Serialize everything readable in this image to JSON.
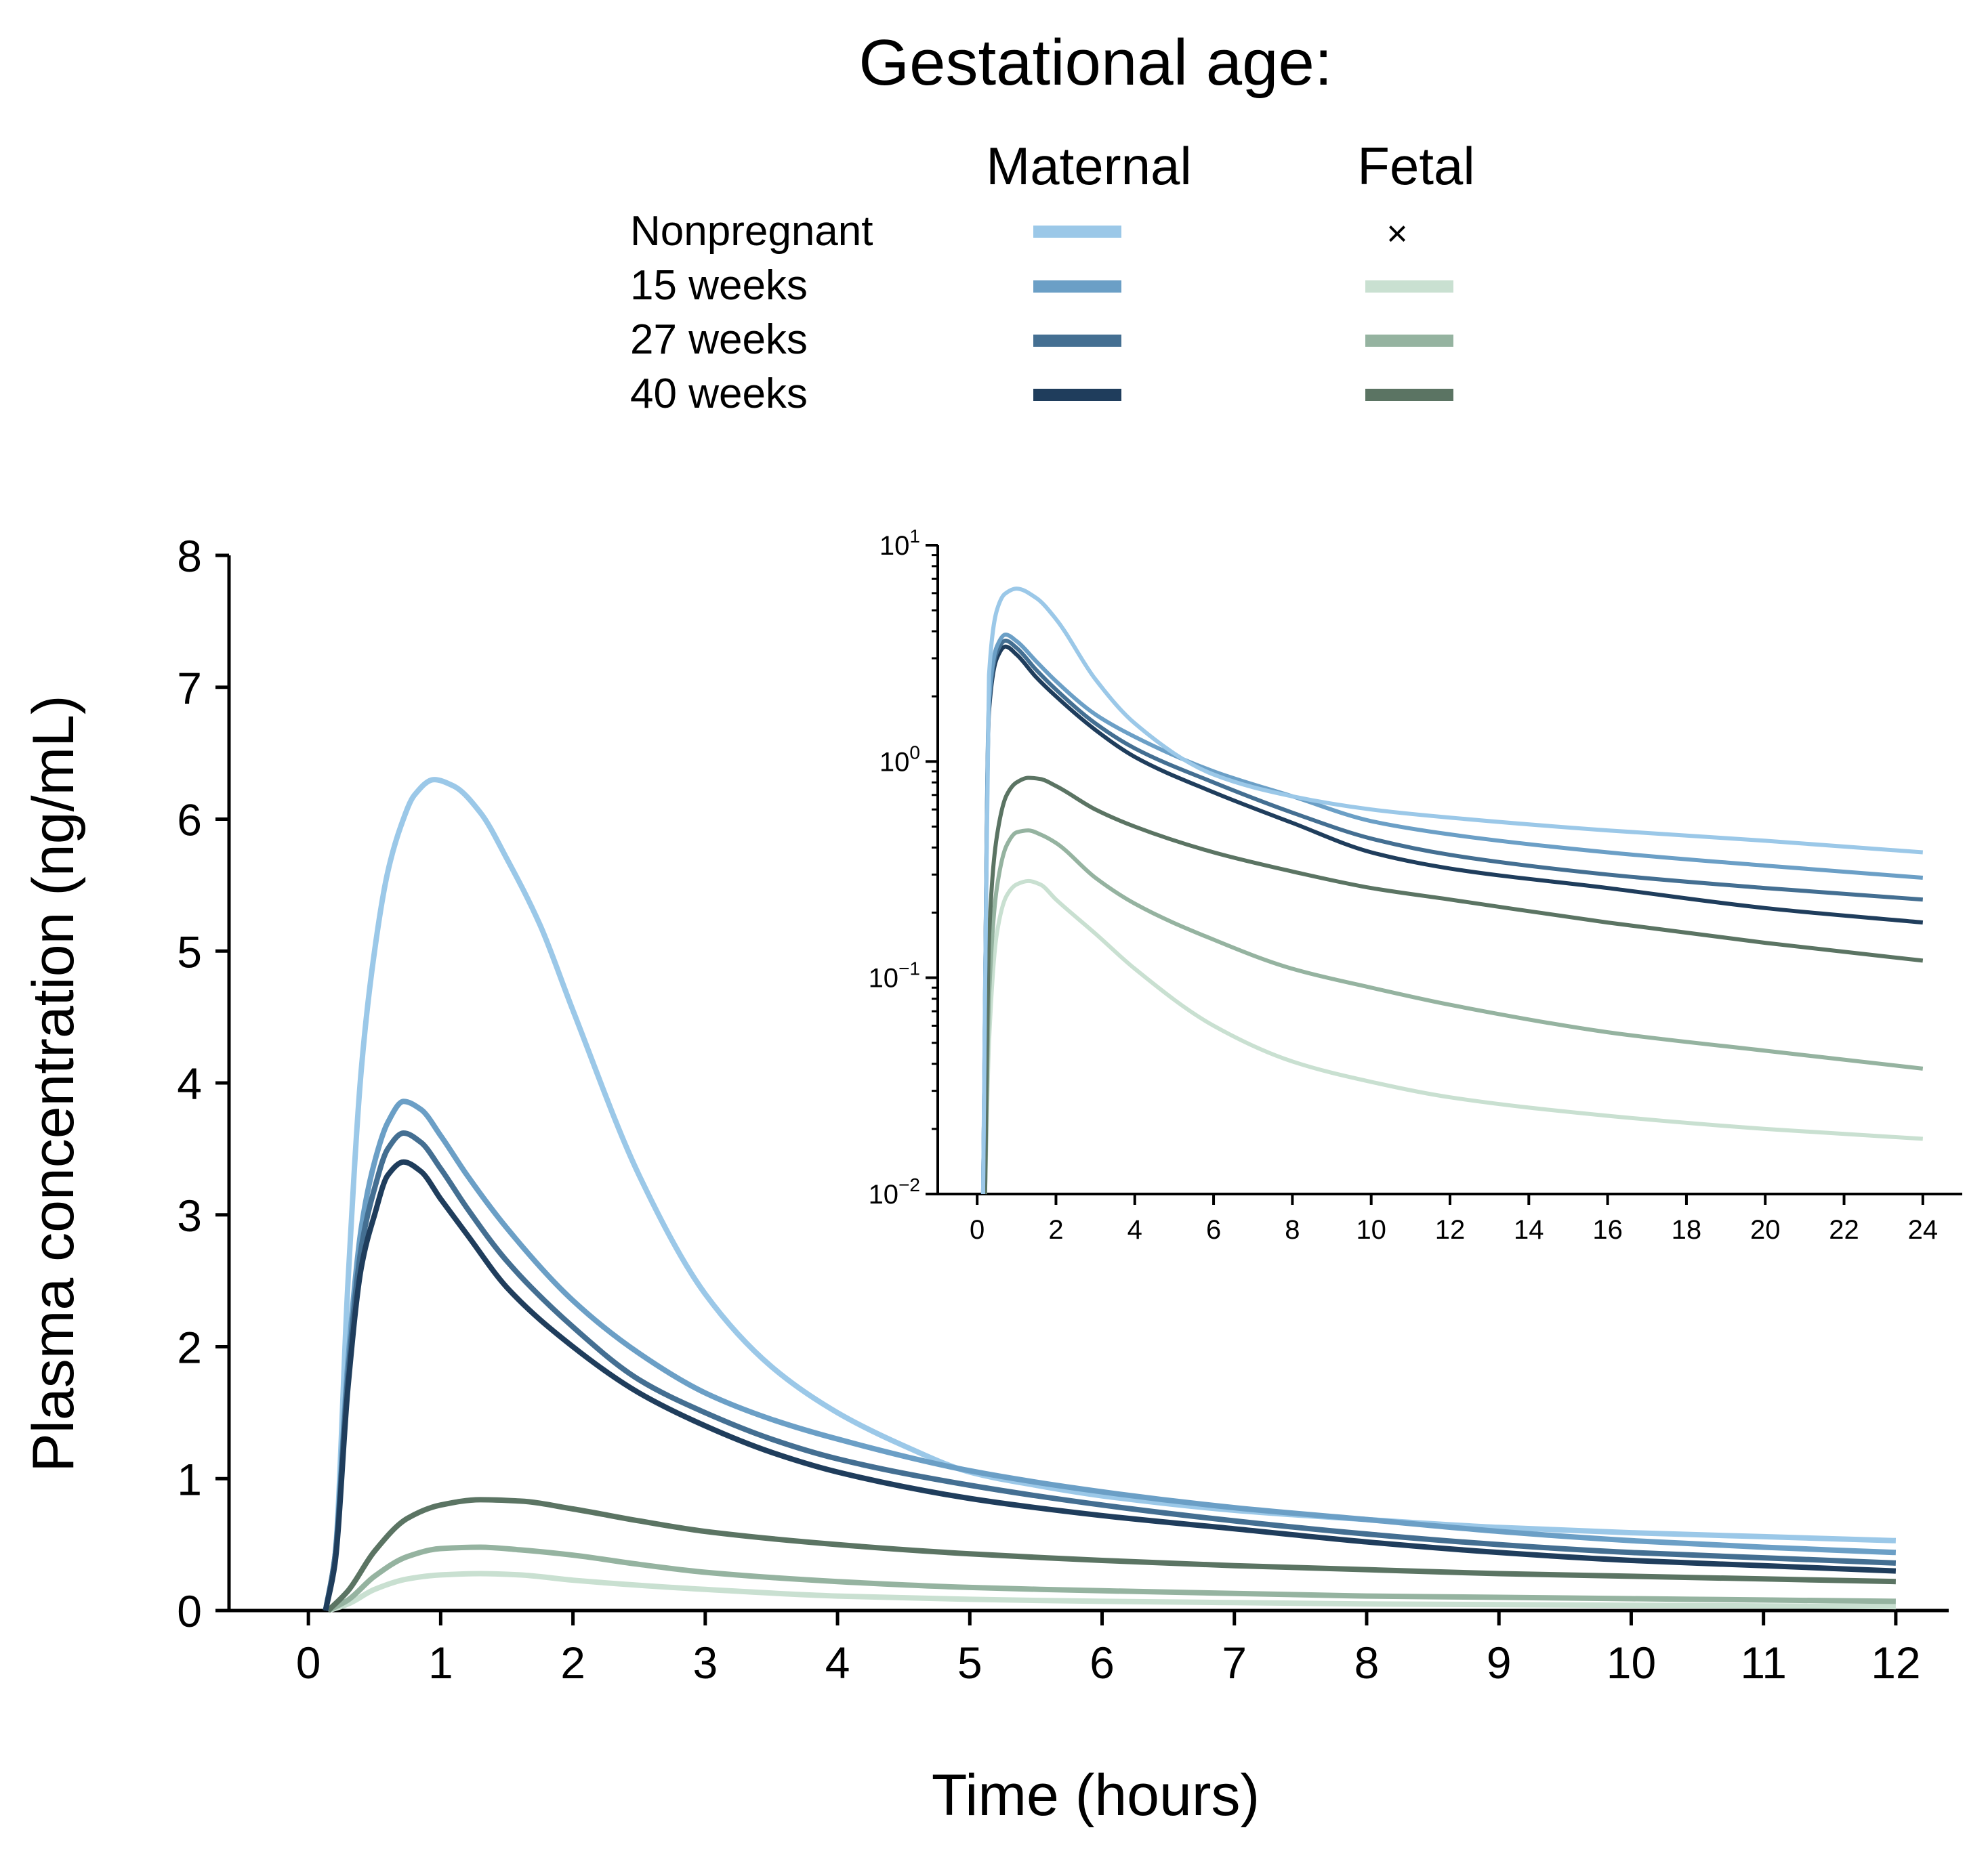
{
  "legend": {
    "title": "Gestational age:",
    "maternal_header": "Maternal",
    "fetal_header": "Fetal",
    "fetal_absent_symbol": "×",
    "rows": [
      {
        "label": "Nonpregnant",
        "maternal_color": "#9bc8e8",
        "fetal_color": null
      },
      {
        "label": "15 weeks",
        "maternal_color": "#6b9fc6",
        "fetal_color": "#c9e0d1"
      },
      {
        "label": "27 weeks",
        "maternal_color": "#446f92",
        "fetal_color": "#95b3a0"
      },
      {
        "label": "40 weeks",
        "maternal_color": "#1f3d5c",
        "fetal_color": "#5b7463"
      }
    ]
  },
  "chart_data": [
    {
      "type": "line",
      "title": "",
      "xlabel": "Time (hours)",
      "ylabel": "Plasma concentration (ng/mL)",
      "xlim": [
        -0.6,
        12.4
      ],
      "ylim": [
        0,
        8
      ],
      "xticks": [
        0,
        1,
        2,
        3,
        4,
        5,
        6,
        7,
        8,
        9,
        10,
        11,
        12
      ],
      "yticks": [
        0,
        1,
        2,
        3,
        4,
        5,
        6,
        7,
        8
      ],
      "series": [
        {
          "name": "Maternal Nonpregnant",
          "color": "#9bc8e8",
          "x": [
            0.13,
            0.2,
            0.3,
            0.4,
            0.5,
            0.6,
            0.7,
            0.8,
            0.95,
            1.1,
            1.3,
            1.5,
            1.75,
            2,
            2.5,
            3,
            3.5,
            4,
            4.5,
            5,
            5.5,
            6,
            7,
            8,
            9,
            10,
            11,
            12
          ],
          "y": [
            0,
            0.4,
            2.5,
            4.1,
            5.0,
            5.6,
            5.95,
            6.18,
            6.3,
            6.25,
            6.05,
            5.7,
            5.2,
            4.55,
            3.3,
            2.4,
            1.85,
            1.5,
            1.25,
            1.05,
            0.95,
            0.87,
            0.76,
            0.69,
            0.63,
            0.59,
            0.56,
            0.53
          ]
        },
        {
          "name": "Maternal 15 weeks",
          "color": "#6b9fc6",
          "x": [
            0.13,
            0.2,
            0.3,
            0.4,
            0.5,
            0.6,
            0.72,
            0.85,
            1,
            1.2,
            1.5,
            2,
            2.5,
            3,
            3.5,
            4,
            5,
            6,
            7,
            8,
            9,
            10,
            11,
            12
          ],
          "y": [
            0,
            0.4,
            1.9,
            2.9,
            3.4,
            3.7,
            3.86,
            3.8,
            3.6,
            3.3,
            2.9,
            2.35,
            1.95,
            1.65,
            1.45,
            1.3,
            1.06,
            0.9,
            0.78,
            0.69,
            0.6,
            0.53,
            0.48,
            0.44
          ]
        },
        {
          "name": "Maternal 27 weeks",
          "color": "#446f92",
          "x": [
            0.13,
            0.2,
            0.3,
            0.4,
            0.5,
            0.6,
            0.72,
            0.85,
            1,
            1.2,
            1.5,
            2,
            2.5,
            3,
            3.5,
            4,
            5,
            6,
            7,
            8,
            9,
            10,
            11,
            12
          ],
          "y": [
            0,
            0.4,
            1.8,
            2.75,
            3.2,
            3.5,
            3.62,
            3.55,
            3.35,
            3.05,
            2.65,
            2.15,
            1.75,
            1.5,
            1.3,
            1.15,
            0.95,
            0.8,
            0.68,
            0.58,
            0.5,
            0.44,
            0.4,
            0.36
          ]
        },
        {
          "name": "Maternal 40 weeks",
          "color": "#1f3d5c",
          "x": [
            0.13,
            0.2,
            0.3,
            0.4,
            0.5,
            0.6,
            0.72,
            0.85,
            1,
            1.2,
            1.5,
            2,
            2.5,
            3,
            3.5,
            4,
            5,
            6,
            7,
            8,
            9,
            10,
            11,
            12
          ],
          "y": [
            0,
            0.35,
            1.7,
            2.6,
            3.0,
            3.3,
            3.4,
            3.33,
            3.12,
            2.85,
            2.45,
            2.0,
            1.65,
            1.4,
            1.2,
            1.05,
            0.85,
            0.72,
            0.62,
            0.52,
            0.44,
            0.38,
            0.34,
            0.3
          ]
        },
        {
          "name": "Fetal 15 weeks",
          "color": "#c9e0d1",
          "x": [
            0.15,
            0.3,
            0.5,
            0.75,
            1,
            1.3,
            1.6,
            2,
            3,
            4,
            5,
            6,
            7,
            8,
            9,
            10,
            11,
            12
          ],
          "y": [
            0,
            0.05,
            0.16,
            0.24,
            0.27,
            0.28,
            0.27,
            0.23,
            0.16,
            0.11,
            0.085,
            0.07,
            0.06,
            0.05,
            0.045,
            0.04,
            0.035,
            0.03
          ]
        },
        {
          "name": "Fetal 27 weeks",
          "color": "#95b3a0",
          "x": [
            0.15,
            0.3,
            0.5,
            0.75,
            1,
            1.3,
            1.6,
            2,
            2.5,
            3,
            4,
            5,
            6,
            7,
            8,
            9,
            10,
            11,
            12
          ],
          "y": [
            0,
            0.08,
            0.26,
            0.41,
            0.47,
            0.48,
            0.46,
            0.42,
            0.35,
            0.29,
            0.22,
            0.175,
            0.15,
            0.13,
            0.11,
            0.1,
            0.09,
            0.08,
            0.07
          ]
        },
        {
          "name": "Fetal 40 weeks",
          "color": "#5b7463",
          "x": [
            0.15,
            0.3,
            0.5,
            0.75,
            1,
            1.3,
            1.6,
            2,
            2.5,
            3,
            4,
            5,
            6,
            7,
            8,
            9,
            10,
            11,
            12
          ],
          "y": [
            0,
            0.15,
            0.45,
            0.7,
            0.8,
            0.84,
            0.83,
            0.77,
            0.68,
            0.6,
            0.5,
            0.43,
            0.38,
            0.34,
            0.31,
            0.28,
            0.26,
            0.24,
            0.22
          ]
        }
      ]
    },
    {
      "type": "line",
      "title": "",
      "yscale": "log",
      "xlim": [
        -1,
        25
      ],
      "ylim": [
        0.01,
        10
      ],
      "xticks": [
        0,
        2,
        4,
        6,
        8,
        10,
        12,
        14,
        16,
        18,
        20,
        22,
        24
      ],
      "yticks": [
        0.01,
        0.1,
        1,
        10
      ],
      "ytick_labels": [
        {
          "base": "10",
          "exp": "−2"
        },
        {
          "base": "10",
          "exp": "−1"
        },
        {
          "base": "10",
          "exp": "0"
        },
        {
          "base": "10",
          "exp": "1"
        }
      ],
      "series": [
        {
          "name": "Maternal Nonpregnant",
          "color": "#9bc8e8",
          "x": [
            0.15,
            0.3,
            0.5,
            0.7,
            1,
            1.5,
            2,
            3,
            4,
            6,
            8,
            10,
            12,
            16,
            20,
            24
          ],
          "y": [
            0.01,
            2.5,
            5.0,
            5.95,
            6.3,
            5.7,
            4.55,
            2.4,
            1.5,
            0.87,
            0.69,
            0.6,
            0.55,
            0.48,
            0.43,
            0.38
          ]
        },
        {
          "name": "Maternal 15 weeks",
          "color": "#6b9fc6",
          "x": [
            0.15,
            0.3,
            0.5,
            0.72,
            1,
            1.5,
            2,
            3,
            4,
            6,
            8,
            10,
            12,
            16,
            20,
            24
          ],
          "y": [
            0.01,
            1.9,
            3.4,
            3.86,
            3.6,
            2.9,
            2.35,
            1.65,
            1.3,
            0.9,
            0.69,
            0.53,
            0.46,
            0.38,
            0.33,
            0.29
          ]
        },
        {
          "name": "Maternal 27 weeks",
          "color": "#446f92",
          "x": [
            0.15,
            0.3,
            0.5,
            0.72,
            1,
            1.5,
            2,
            3,
            4,
            6,
            8,
            10,
            12,
            16,
            20,
            24
          ],
          "y": [
            0.01,
            1.8,
            3.2,
            3.62,
            3.35,
            2.65,
            2.15,
            1.5,
            1.15,
            0.8,
            0.58,
            0.44,
            0.37,
            0.3,
            0.26,
            0.23
          ]
        },
        {
          "name": "Maternal 40 weeks",
          "color": "#1f3d5c",
          "x": [
            0.15,
            0.3,
            0.5,
            0.72,
            1,
            1.5,
            2,
            3,
            4,
            6,
            8,
            10,
            12,
            16,
            20,
            24
          ],
          "y": [
            0.01,
            1.7,
            3.0,
            3.4,
            3.12,
            2.45,
            2.0,
            1.4,
            1.05,
            0.72,
            0.52,
            0.38,
            0.32,
            0.26,
            0.21,
            0.18
          ]
        },
        {
          "name": "Fetal 15 weeks",
          "color": "#c9e0d1",
          "x": [
            0.2,
            0.3,
            0.5,
            0.75,
            1,
            1.3,
            1.6,
            2,
            3,
            4,
            6,
            8,
            10,
            12,
            16,
            20,
            24
          ],
          "y": [
            0.01,
            0.05,
            0.16,
            0.24,
            0.27,
            0.28,
            0.27,
            0.23,
            0.16,
            0.11,
            0.06,
            0.041,
            0.033,
            0.028,
            0.023,
            0.02,
            0.018
          ]
        },
        {
          "name": "Fetal 27 weeks",
          "color": "#95b3a0",
          "x": [
            0.2,
            0.3,
            0.5,
            0.75,
            1,
            1.3,
            1.6,
            2,
            3,
            4,
            6,
            8,
            10,
            12,
            16,
            20,
            24
          ],
          "y": [
            0.01,
            0.08,
            0.26,
            0.41,
            0.47,
            0.48,
            0.46,
            0.42,
            0.29,
            0.22,
            0.15,
            0.11,
            0.09,
            0.075,
            0.056,
            0.046,
            0.038
          ]
        },
        {
          "name": "Fetal 40 weeks",
          "color": "#5b7463",
          "x": [
            0.2,
            0.3,
            0.5,
            0.75,
            1,
            1.3,
            1.6,
            2,
            3,
            4,
            6,
            8,
            10,
            12,
            16,
            20,
            24
          ],
          "y": [
            0.01,
            0.15,
            0.45,
            0.7,
            0.8,
            0.84,
            0.83,
            0.77,
            0.6,
            0.5,
            0.38,
            0.31,
            0.26,
            0.23,
            0.18,
            0.145,
            0.12
          ]
        }
      ]
    }
  ]
}
